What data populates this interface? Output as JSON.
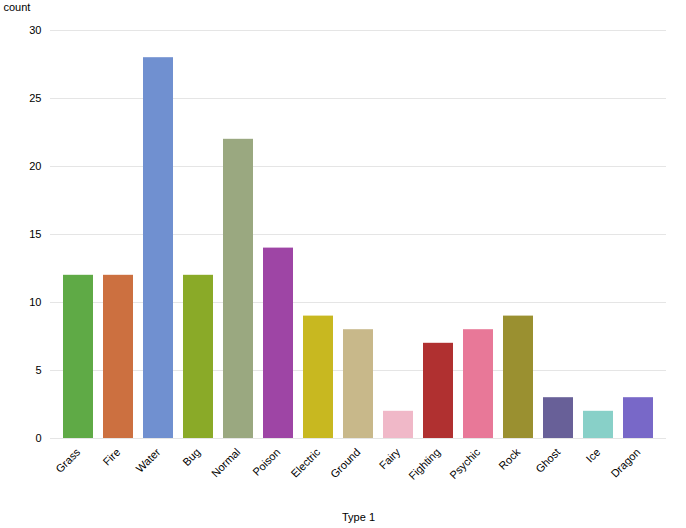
{
  "chart_data": {
    "type": "bar",
    "categories": [
      "Grass",
      "Fire",
      "Water",
      "Bug",
      "Normal",
      "Poison",
      "Electric",
      "Ground",
      "Fairy",
      "Fighting",
      "Psychic",
      "Rock",
      "Ghost",
      "Ice",
      "Dragon"
    ],
    "values": [
      12,
      12,
      28,
      12,
      22,
      14,
      9,
      8,
      2,
      7,
      8,
      9,
      3,
      2,
      3
    ],
    "colors": [
      "#5faa46",
      "#cc7040",
      "#7090d0",
      "#8aaa28",
      "#9aa880",
      "#9e45a5",
      "#c8b820",
      "#c8b88a",
      "#f0b8c8",
      "#b03030",
      "#e87898",
      "#9a9030",
      "#686098",
      "#88d0c8",
      "#7868c8"
    ],
    "xlabel": "Type 1",
    "ylabel": "count",
    "ylim": [
      0,
      30
    ],
    "yticks": [
      0,
      5,
      10,
      15,
      20,
      25,
      30
    ],
    "grid": true
  }
}
